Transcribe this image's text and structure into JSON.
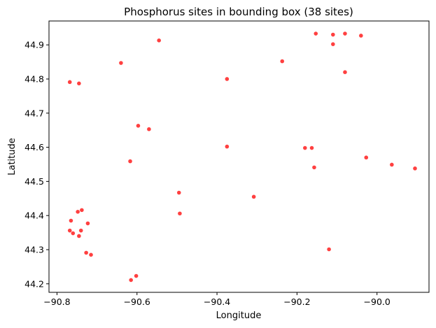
{
  "chart_data": {
    "type": "scatter",
    "title": "Phosphorus sites in bounding box (38 sites)",
    "xlabel": "Longitude",
    "ylabel": "Latitude",
    "xlim": [
      -90.82,
      -89.87
    ],
    "ylim": [
      44.175,
      44.97
    ],
    "xticks": [
      -90.8,
      -90.6,
      -90.4,
      -90.2,
      -90.0
    ],
    "xtick_labels": [
      "−90.8",
      "−90.6",
      "−90.4",
      "−90.2",
      "−90.0"
    ],
    "yticks": [
      44.2,
      44.3,
      44.4,
      44.5,
      44.6,
      44.7,
      44.8,
      44.9
    ],
    "ytick_labels": [
      "44.2",
      "44.3",
      "44.4",
      "44.5",
      "44.6",
      "44.7",
      "44.8",
      "44.9"
    ],
    "grid": false,
    "marker_color": "#ff0000",
    "marker_alpha": 0.75,
    "points": [
      {
        "x": -90.153,
        "y": 44.933
      },
      {
        "x": -90.08,
        "y": 44.933
      },
      {
        "x": -90.11,
        "y": 44.93
      },
      {
        "x": -90.04,
        "y": 44.927
      },
      {
        "x": -90.545,
        "y": 44.913
      },
      {
        "x": -90.11,
        "y": 44.902
      },
      {
        "x": -90.64,
        "y": 44.847
      },
      {
        "x": -90.237,
        "y": 44.852
      },
      {
        "x": -90.08,
        "y": 44.82
      },
      {
        "x": -90.375,
        "y": 44.8
      },
      {
        "x": -90.768,
        "y": 44.791
      },
      {
        "x": -90.745,
        "y": 44.787
      },
      {
        "x": -90.597,
        "y": 44.663
      },
      {
        "x": -90.57,
        "y": 44.653
      },
      {
        "x": -90.375,
        "y": 44.602
      },
      {
        "x": -90.18,
        "y": 44.598
      },
      {
        "x": -90.163,
        "y": 44.598
      },
      {
        "x": -90.027,
        "y": 44.57
      },
      {
        "x": -89.963,
        "y": 44.549
      },
      {
        "x": -89.905,
        "y": 44.538
      },
      {
        "x": -90.157,
        "y": 44.541
      },
      {
        "x": -90.617,
        "y": 44.559
      },
      {
        "x": -90.495,
        "y": 44.467
      },
      {
        "x": -90.308,
        "y": 44.455
      },
      {
        "x": -90.738,
        "y": 44.416
      },
      {
        "x": -90.748,
        "y": 44.411
      },
      {
        "x": -90.493,
        "y": 44.406
      },
      {
        "x": -90.765,
        "y": 44.385
      },
      {
        "x": -90.723,
        "y": 44.377
      },
      {
        "x": -90.768,
        "y": 44.356
      },
      {
        "x": -90.74,
        "y": 44.356
      },
      {
        "x": -90.76,
        "y": 44.348
      },
      {
        "x": -90.745,
        "y": 44.34
      },
      {
        "x": -90.727,
        "y": 44.291
      },
      {
        "x": -90.715,
        "y": 44.285
      },
      {
        "x": -90.12,
        "y": 44.301
      },
      {
        "x": -90.602,
        "y": 44.223
      },
      {
        "x": -90.615,
        "y": 44.211
      }
    ]
  }
}
